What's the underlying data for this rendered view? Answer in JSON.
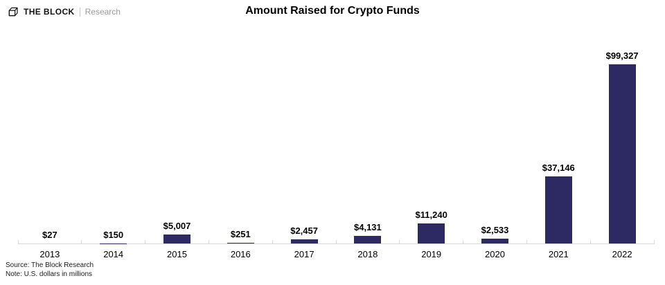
{
  "header": {
    "brand": "THE BLOCK",
    "brand_suffix": "Research"
  },
  "chart_data": {
    "type": "bar",
    "title": "Amount Raised for Crypto Funds",
    "categories": [
      "2013",
      "2014",
      "2015",
      "2016",
      "2017",
      "2018",
      "2019",
      "2020",
      "2021",
      "2022"
    ],
    "values": [
      27,
      150,
      5007,
      251,
      2457,
      4131,
      11240,
      2533,
      37146,
      99327
    ],
    "labels": [
      "$27",
      "$150",
      "$5,007",
      "$251",
      "$2,457",
      "$4,131",
      "$11,240",
      "$2,533",
      "$37,146",
      "$99,327"
    ],
    "xlabel": "",
    "ylabel": "",
    "ylim": [
      0,
      100000
    ],
    "grid": false,
    "legend": "none",
    "bar_color": "#2D2962",
    "axis_color": "#D9D9D9"
  },
  "footer": {
    "source": "Source: The Block Research",
    "note": "Note: U.S. dollars in millions"
  }
}
